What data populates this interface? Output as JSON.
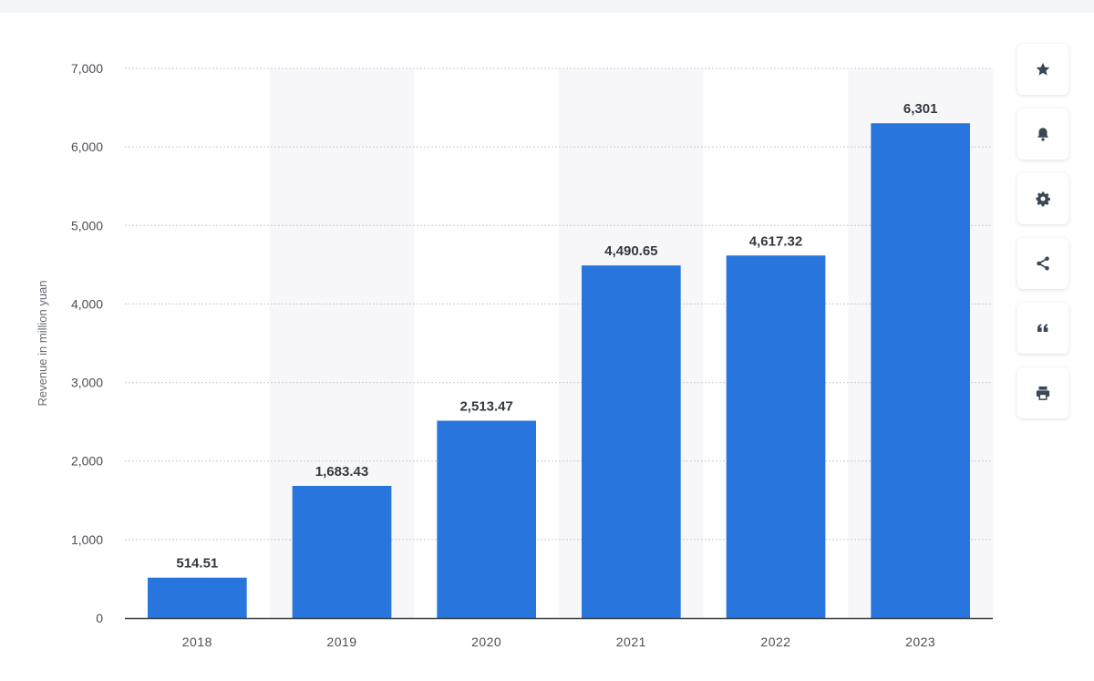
{
  "chart_data": {
    "type": "bar",
    "categories": [
      "2018",
      "2019",
      "2020",
      "2021",
      "2022",
      "2023"
    ],
    "values": [
      514.51,
      1683.43,
      2513.47,
      4490.65,
      4617.32,
      6301
    ],
    "value_labels": [
      "514.51",
      "1,683.43",
      "2,513.47",
      "4,490.65",
      "4,617.32",
      "6,301"
    ],
    "ylabel": "Revenue in million yuan",
    "ylim": [
      0,
      7000
    ],
    "yticks": [
      0,
      1000,
      2000,
      3000,
      4000,
      5000,
      6000,
      7000
    ],
    "ytick_labels": [
      "0",
      "1,000",
      "2,000",
      "3,000",
      "4,000",
      "5,000",
      "6,000",
      "7,000"
    ],
    "grid": true,
    "bar_color": "#2876dd",
    "alt_band_color": "#f7f7f9"
  },
  "toolbar": {
    "buttons": [
      "star-icon",
      "bell-icon",
      "gear-icon",
      "share-icon",
      "quote-icon",
      "print-icon"
    ]
  }
}
